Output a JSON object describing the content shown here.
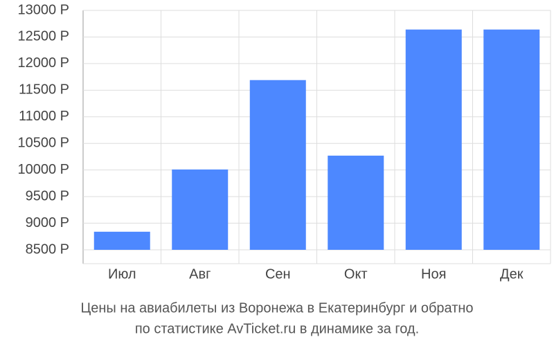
{
  "chart_data": {
    "type": "bar",
    "title": [
      "Цены на авиабилеты из Воронежа в Екатеринбург и обратно",
      "по статистике AvTicket.ru в динамике за год."
    ],
    "categories": [
      "Июл",
      "Авг",
      "Сен",
      "Окт",
      "Ноя",
      "Дек"
    ],
    "values": [
      8840,
      10010,
      11690,
      10270,
      12640,
      12640
    ],
    "color": "#4d88ff",
    "ylim": [
      8500,
      13000
    ],
    "yticks": [
      {
        "value": 8500,
        "label": "8500 Р"
      },
      {
        "value": 9000,
        "label": "9000 Р"
      },
      {
        "value": 9500,
        "label": "9500 Р"
      },
      {
        "value": 10000,
        "label": "10000 Р"
      },
      {
        "value": 10500,
        "label": "10500 Р"
      },
      {
        "value": 11000,
        "label": "11000 Р"
      },
      {
        "value": 11500,
        "label": "11500 Р"
      },
      {
        "value": 12000,
        "label": "12000 Р"
      },
      {
        "value": 12500,
        "label": "12500 Р"
      },
      {
        "value": 13000,
        "label": "13000 Р"
      }
    ],
    "grid": true
  }
}
